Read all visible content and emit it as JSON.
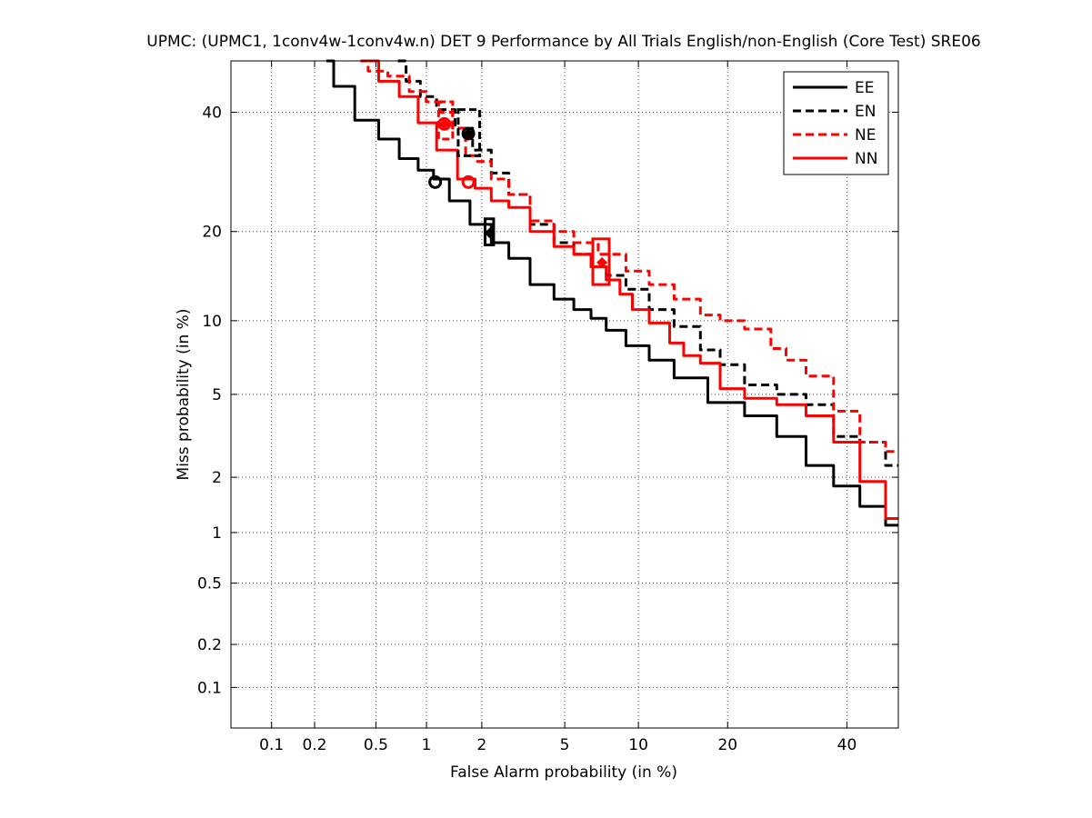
{
  "chart_data": {
    "type": "line",
    "title": "UPMC: (UPMC1, 1conv4w-1conv4w.n) DET 9 Performance by All Trials English/non-English (Core Test) SRE06",
    "xlabel": "False Alarm probability (in %)",
    "ylabel": "Miss probability (in %)",
    "x_scale": "probit",
    "y_scale": "probit",
    "xlim": [
      0.05,
      50
    ],
    "ylim": [
      0.05,
      50
    ],
    "x_ticks": [
      0.1,
      0.2,
      0.5,
      1,
      2,
      5,
      10,
      20,
      40
    ],
    "x_tick_labels": [
      "0.1",
      "0.2",
      "0.5",
      "1",
      "2",
      "5",
      "10",
      "20",
      "40"
    ],
    "y_ticks": [
      0.1,
      0.2,
      0.5,
      1,
      2,
      5,
      10,
      20,
      40
    ],
    "y_tick_labels": [
      "0.1",
      "0.2",
      "0.5",
      "1",
      "2",
      "5",
      "10",
      "20",
      "40"
    ],
    "grid": true,
    "legend_position": "top-right",
    "series": [
      {
        "name": "EE",
        "color": "#000000",
        "dash": "solid",
        "points": [
          [
            0.24,
            50
          ],
          [
            0.3,
            45
          ],
          [
            0.45,
            38.5
          ],
          [
            0.6,
            35
          ],
          [
            0.8,
            31.5
          ],
          [
            1.0,
            29.5
          ],
          [
            1.2,
            28
          ],
          [
            1.5,
            24.5
          ],
          [
            2.0,
            21
          ],
          [
            2.5,
            18.5
          ],
          [
            3.0,
            16.5
          ],
          [
            4.0,
            13.5
          ],
          [
            5.0,
            12
          ],
          [
            6.0,
            11
          ],
          [
            7.0,
            10.2
          ],
          [
            8.0,
            9.2
          ],
          [
            10.0,
            8
          ],
          [
            12.0,
            7
          ],
          [
            15.0,
            5.9
          ],
          [
            20.0,
            4.6
          ],
          [
            25.0,
            4.0
          ],
          [
            30.0,
            3.2
          ],
          [
            35.0,
            2.3
          ],
          [
            40.0,
            1.8
          ],
          [
            45.0,
            1.4
          ],
          [
            50.0,
            1.1
          ]
        ],
        "actual_dcf": [
          1.12,
          27.5
        ],
        "min_dcf": [
          2.2,
          19.8
        ],
        "ci_box": [
          2.08,
          2.3,
          18.2,
          21.8
        ]
      },
      {
        "name": "EN",
        "color": "#000000",
        "dash": "dashed",
        "points": [
          [
            0.68,
            50
          ],
          [
            0.85,
            46
          ],
          [
            1.0,
            43
          ],
          [
            1.3,
            40.5
          ],
          [
            1.6,
            37
          ],
          [
            2.0,
            33
          ],
          [
            2.5,
            29
          ],
          [
            3.0,
            25.5
          ],
          [
            4.0,
            21
          ],
          [
            5.0,
            18.5
          ],
          [
            6.0,
            17
          ],
          [
            7.0,
            15.5
          ],
          [
            8.0,
            14.5
          ],
          [
            10.0,
            13
          ],
          [
            12.0,
            11
          ],
          [
            15.0,
            9.5
          ],
          [
            18.0,
            7.7
          ],
          [
            20.0,
            6.7
          ],
          [
            25.0,
            5.5
          ],
          [
            30.0,
            5
          ],
          [
            35.0,
            4.5
          ],
          [
            40.0,
            3.2
          ],
          [
            45.0,
            3.0
          ],
          [
            50.0,
            2.3
          ]
        ],
        "actual_dcf": [
          1.7,
          36
        ],
        "min_dcf": [
          1.7,
          36
        ],
        "ci_box": [
          1.5,
          1.95,
          32,
          40.5
        ]
      },
      {
        "name": "NE",
        "color": "#ff0000",
        "dash": "dashed",
        "points": [
          [
            0.4,
            50
          ],
          [
            0.5,
            48
          ],
          [
            0.7,
            47
          ],
          [
            0.9,
            44
          ],
          [
            1.1,
            42
          ],
          [
            1.3,
            40
          ],
          [
            1.5,
            37
          ],
          [
            1.8,
            32
          ],
          [
            2.0,
            31
          ],
          [
            2.5,
            28
          ],
          [
            3.0,
            25.5
          ],
          [
            4.0,
            21.5
          ],
          [
            5.0,
            20
          ],
          [
            6.0,
            18.5
          ],
          [
            8.0,
            17
          ],
          [
            10.0,
            15
          ],
          [
            12.0,
            13.5
          ],
          [
            15.0,
            12
          ],
          [
            18.0,
            10.5
          ],
          [
            20.0,
            10
          ],
          [
            25.0,
            9.3
          ],
          [
            28.0,
            7.8
          ],
          [
            30.0,
            7
          ],
          [
            35.0,
            6
          ],
          [
            40.0,
            4.2
          ],
          [
            45.0,
            3.0
          ],
          [
            50.0,
            2.7
          ]
        ],
        "actual_dcf": [
          1.26,
          37.8
        ],
        "min_dcf": [
          1.26,
          37.8
        ],
        "ci_box": [
          1.17,
          1.4,
          35,
          42
        ]
      },
      {
        "name": "NN",
        "color": "#ff0000",
        "dash": "solid",
        "points": [
          [
            0.45,
            50
          ],
          [
            0.6,
            46
          ],
          [
            0.8,
            43
          ],
          [
            1.0,
            38
          ],
          [
            1.3,
            33
          ],
          [
            1.7,
            28
          ],
          [
            2.0,
            26.5
          ],
          [
            2.5,
            24.5
          ],
          [
            3.0,
            23.5
          ],
          [
            4.0,
            20
          ],
          [
            5.0,
            18
          ],
          [
            6.0,
            17
          ],
          [
            7.0,
            15.5
          ],
          [
            8.0,
            14
          ],
          [
            9.0,
            12.5
          ],
          [
            10.0,
            11
          ],
          [
            12.0,
            9.8
          ],
          [
            14.0,
            8.2
          ],
          [
            15.0,
            7.3
          ],
          [
            18.0,
            6.8
          ],
          [
            20.0,
            5.3
          ],
          [
            25.0,
            4.8
          ],
          [
            30.0,
            4.5
          ],
          [
            35.0,
            4.0
          ],
          [
            40.0,
            3.0
          ],
          [
            45.0,
            1.9
          ],
          [
            50.0,
            1.2
          ]
        ],
        "actual_dcf": [
          1.7,
          27.5
        ],
        "min_dcf": [
          7.2,
          16
        ],
        "ci_box": [
          6.6,
          7.7,
          13.5,
          19
        ]
      }
    ]
  }
}
